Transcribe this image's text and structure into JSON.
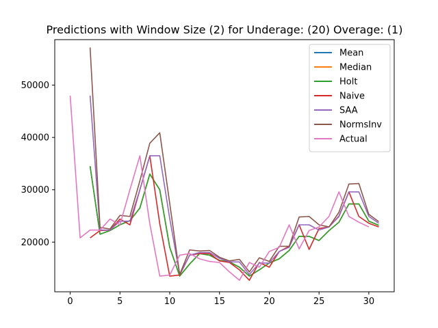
{
  "chart_data": {
    "type": "line",
    "title": "Predictions with Window Size (2) for Underage: (20) Overage: (1)",
    "xlabel": "",
    "ylabel": "",
    "xlim": [
      -1.55,
      32.55
    ],
    "ylim": [
      10500,
      58700
    ],
    "xticks": [
      0,
      5,
      10,
      15,
      20,
      25,
      30
    ],
    "yticks": [
      20000,
      30000,
      40000,
      50000
    ],
    "ytick_labels": [
      "20000",
      "30000",
      "40000",
      "50000"
    ],
    "grid": false,
    "legend_position": "top-right",
    "series": [
      {
        "name": "Mean",
        "color": "#1f77b4",
        "x": [
          2,
          3,
          4,
          5,
          6,
          7,
          8,
          9,
          10,
          11,
          12,
          13,
          14,
          15,
          16,
          17,
          18,
          19,
          20,
          21,
          22,
          23,
          24,
          25,
          26,
          27,
          28,
          29,
          30,
          31
        ],
        "values": [
          34500,
          21500,
          22200,
          23300,
          24100,
          26500,
          33000,
          30000,
          19000,
          13500,
          15800,
          17800,
          17500,
          16500,
          16200,
          15200,
          13500,
          14700,
          16000,
          16800,
          18400,
          21100,
          21100,
          20300,
          22200,
          23800,
          27300,
          27300,
          24000,
          23200
        ]
      },
      {
        "name": "Median",
        "color": "#ff7f0e",
        "x": [
          2,
          3,
          4,
          5,
          6,
          7,
          8,
          9,
          10,
          11,
          12,
          13,
          14,
          15,
          16,
          17,
          18,
          19,
          20,
          21,
          22,
          23,
          24,
          25,
          26,
          27,
          28,
          29,
          30,
          31
        ],
        "values": [
          34500,
          21500,
          22200,
          23300,
          24100,
          26500,
          33000,
          30000,
          19000,
          13500,
          15800,
          17800,
          17500,
          16500,
          16200,
          15200,
          13500,
          14700,
          16000,
          16800,
          18400,
          21100,
          21100,
          20300,
          22200,
          23800,
          27300,
          27300,
          24000,
          23200
        ]
      },
      {
        "name": "Holt",
        "color": "#2ca02c",
        "x": [
          2,
          3,
          4,
          5,
          6,
          7,
          8,
          9,
          10,
          11,
          12,
          13,
          14,
          15,
          16,
          17,
          18,
          19,
          20,
          21,
          22,
          23,
          24,
          25,
          26,
          27,
          28,
          29,
          30,
          31
        ],
        "values": [
          34500,
          21500,
          22200,
          23300,
          24100,
          26500,
          33000,
          30000,
          19000,
          13500,
          15800,
          17800,
          17500,
          16500,
          16200,
          15200,
          13500,
          14700,
          16000,
          16800,
          18400,
          21100,
          21100,
          20300,
          22200,
          23800,
          27300,
          27300,
          24000,
          23200
        ]
      },
      {
        "name": "Naive",
        "color": "#d62728",
        "x": [
          2,
          3,
          4,
          5,
          6,
          7,
          8,
          9,
          10,
          11,
          12,
          13,
          14,
          15,
          16,
          17,
          18,
          19,
          20,
          21,
          22,
          23,
          24,
          25,
          26,
          27,
          28,
          29,
          30,
          31
        ],
        "values": [
          20800,
          22200,
          22300,
          24400,
          23300,
          30000,
          36500,
          23500,
          13500,
          13700,
          17500,
          17800,
          17800,
          16400,
          16100,
          14700,
          12700,
          16100,
          15200,
          18200,
          19200,
          23300,
          18600,
          22600,
          22900,
          24900,
          29600,
          24900,
          23600,
          22900
        ]
      },
      {
        "name": "SAA",
        "color": "#9467bd",
        "x": [
          2,
          3,
          4,
          5,
          6,
          7,
          8,
          9,
          10,
          11,
          12,
          13,
          14,
          15,
          16,
          17,
          18,
          19,
          20,
          21,
          22,
          23,
          24,
          25,
          26,
          27,
          28,
          29,
          30,
          31
        ],
        "values": [
          48000,
          22300,
          22300,
          24000,
          24000,
          30000,
          36500,
          36500,
          24500,
          13800,
          17500,
          18000,
          18000,
          16900,
          16200,
          16200,
          13800,
          16000,
          16000,
          18200,
          19000,
          23300,
          23300,
          22300,
          22900,
          25000,
          29600,
          29600,
          24900,
          23600
        ]
      },
      {
        "name": "NormsInv",
        "color": "#8c564b",
        "x": [
          2,
          3,
          4,
          5,
          6,
          7,
          8,
          9,
          10,
          11,
          12,
          13,
          14,
          15,
          16,
          17,
          18,
          19,
          20,
          21,
          22,
          23,
          24,
          25,
          26,
          27,
          28,
          29,
          30,
          31
        ],
        "values": [
          57200,
          22800,
          22500,
          25100,
          24900,
          31700,
          38900,
          40900,
          27400,
          13800,
          18500,
          18300,
          18400,
          17100,
          16400,
          16700,
          14300,
          17000,
          16300,
          19200,
          19200,
          24800,
          24900,
          23300,
          22900,
          25700,
          31100,
          31200,
          25300,
          23900
        ]
      },
      {
        "name": "Actual",
        "color": "#e377c2",
        "x": [
          0,
          1,
          2,
          3,
          4,
          5,
          6,
          7,
          8,
          9,
          10,
          11,
          12,
          13,
          14,
          15,
          16,
          17,
          18,
          19,
          20,
          21,
          22,
          23,
          24,
          25,
          26,
          27,
          28,
          29,
          30
        ],
        "values": [
          48000,
          20800,
          22300,
          22300,
          24400,
          23300,
          30000,
          36500,
          23500,
          13500,
          13700,
          17500,
          17800,
          16800,
          16300,
          16100,
          14300,
          12700,
          16100,
          15200,
          18200,
          19000,
          23300,
          18700,
          22200,
          22900,
          24900,
          29600,
          24900,
          23800,
          22900
        ]
      }
    ]
  }
}
